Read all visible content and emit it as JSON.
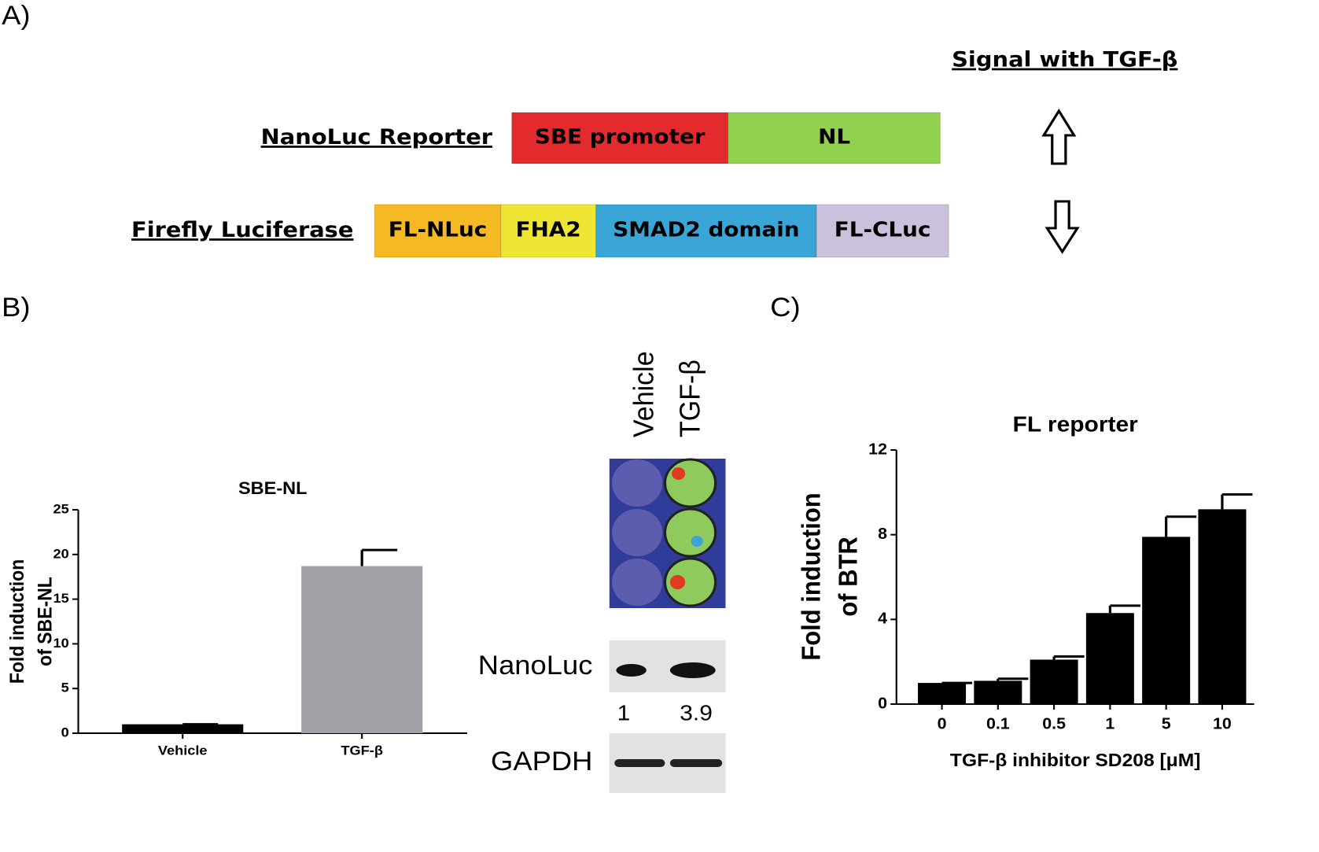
{
  "panel_a": {
    "label": "A)",
    "signal_title": "Signal with TGF-β",
    "constructs": [
      {
        "name": "NanoLuc Reporter",
        "segments": [
          {
            "label": "SBE promoter",
            "color": "#e32b2e"
          },
          {
            "label": "NL",
            "color": "#92d050"
          }
        ]
      },
      {
        "name": "Firefly Luciferase",
        "segments": [
          {
            "label": "FL-NLuc",
            "color": "#f5b924"
          },
          {
            "label": "FHA2",
            "color": "#efe634"
          },
          {
            "label": "SMAD2 domain",
            "color": "#3aa6d8"
          },
          {
            "label": "FL-CLuc",
            "color": "#cbc1dc"
          }
        ]
      }
    ]
  },
  "panel_b": {
    "label": "B)",
    "blot": {
      "lanes": [
        "Vehicle",
        "TGF-β"
      ],
      "rows": [
        "NanoLuc",
        "GAPDH"
      ],
      "quantification": [
        1,
        3.9
      ]
    }
  },
  "panel_c": {
    "label": "C)"
  },
  "chart_data": [
    {
      "type": "bar",
      "title": "SBE-NL",
      "ylabel": [
        "Fold induction",
        "of SBE-NL"
      ],
      "categories": [
        "Vehicle",
        "TGF-β"
      ],
      "values": [
        1,
        18.7
      ],
      "errors": [
        0,
        1.8
      ],
      "colors": [
        "#000000",
        "#a0a0a6"
      ],
      "ylim": [
        0,
        25
      ],
      "yticks": [
        0,
        5,
        10,
        15,
        20,
        25
      ]
    },
    {
      "type": "bar",
      "title": "FL reporter",
      "ylabel": [
        "Fold induction",
        "of BTR"
      ],
      "xlabel": "TGF-β inhibitor SD208 [μM]",
      "categories": [
        "0",
        "0.1",
        "0.5",
        "1",
        "5",
        "10"
      ],
      "values": [
        1,
        1.1,
        2.1,
        4.3,
        7.9,
        9.2
      ],
      "errors": [
        0,
        0.1,
        0.15,
        0.35,
        0.95,
        0.7
      ],
      "colors": [
        "#000000",
        "#000000",
        "#000000",
        "#000000",
        "#000000",
        "#000000"
      ],
      "ylim": [
        0,
        12
      ],
      "yticks": [
        0,
        4,
        8,
        12
      ]
    }
  ]
}
